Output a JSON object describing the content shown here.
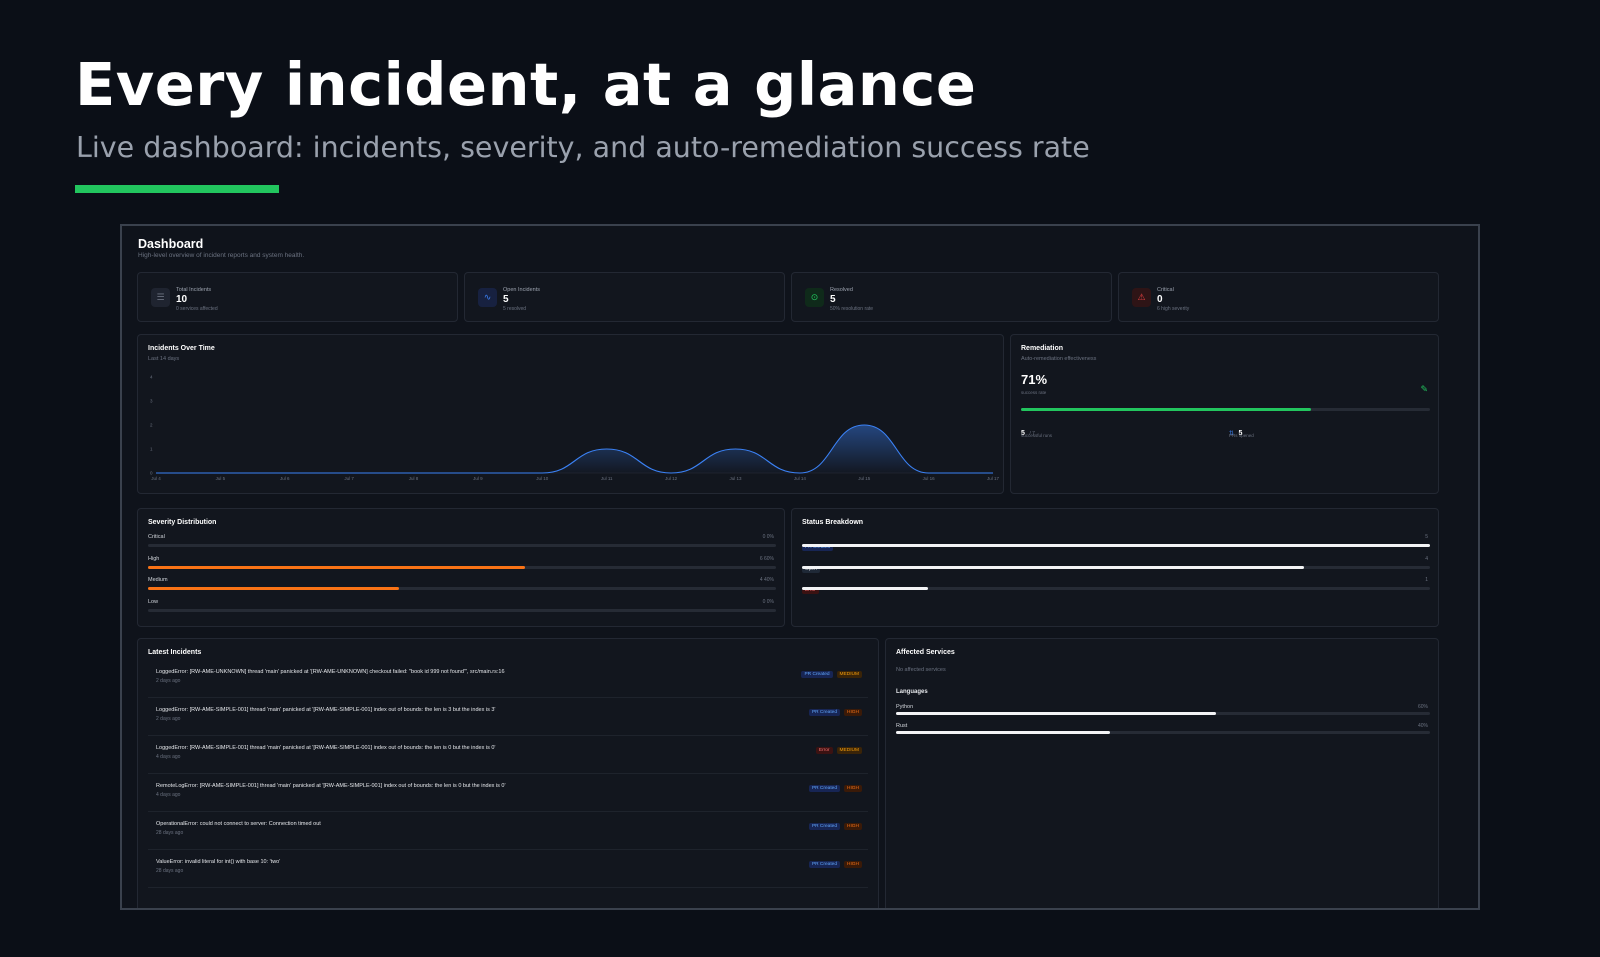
{
  "hero": {
    "title": "Every incident, at a glance",
    "subtitle": "Live dashboard: incidents, severity, and auto-remediation success rate"
  },
  "colors": {
    "accent_green": "#22c55e",
    "chart_line": "#3b82f6",
    "severity_orange": "#f97316",
    "critical_red": "#ef4444"
  },
  "dashboard": {
    "title": "Dashboard",
    "subtitle": "High-level overview of incident reports and system health."
  },
  "stats": [
    {
      "icon": "list-icon",
      "label": "Total Incidents",
      "value": "10",
      "note": "0 services affected"
    },
    {
      "icon": "activity-icon",
      "label": "Open Incidents",
      "value": "5",
      "note": "5 resolved"
    },
    {
      "icon": "check-circle-icon",
      "label": "Resolved",
      "value": "5",
      "note": "50% resolution rate"
    },
    {
      "icon": "alert-triangle-icon",
      "label": "Critical",
      "value": "0",
      "note": "6 high severity"
    }
  ],
  "incidents_chart": {
    "title": "Incidents Over Time",
    "subtitle": "Last 14 days"
  },
  "chart_data": {
    "type": "area",
    "x": [
      "Jul 4",
      "Jul 5",
      "Jul 6",
      "Jul 7",
      "Jul 8",
      "Jul 9",
      "Jul 10",
      "Jul 11",
      "Jul 12",
      "Jul 13",
      "Jul 14",
      "Jul 15",
      "Jul 16",
      "Jul 17"
    ],
    "values": [
      0,
      0,
      0,
      0,
      0,
      0,
      0,
      1,
      0,
      1,
      0,
      2,
      0,
      0
    ],
    "yticks": [
      "0",
      "1",
      "2",
      "3",
      "4"
    ],
    "ylim": [
      0,
      4
    ]
  },
  "remediation": {
    "title": "Remediation",
    "subtitle": "Auto-remediation effectiveness",
    "rate": "71%",
    "rate_label": "success rate",
    "progress": 0.71,
    "successful_value": "5",
    "successful_total": "/ 7",
    "successful_label": "successful runs",
    "prs_value": "5",
    "prs_label": "PRs opened"
  },
  "severity": {
    "title": "Severity Distribution",
    "rows": [
      {
        "label": "Critical",
        "count": "0",
        "pct": "0%",
        "fraction": 0
      },
      {
        "label": "High",
        "count": "6",
        "pct": "60%",
        "fraction": 0.6
      },
      {
        "label": "Medium",
        "count": "4",
        "pct": "40%",
        "fraction": 0.4
      },
      {
        "label": "Low",
        "count": "0",
        "pct": "0%",
        "fraction": 0
      }
    ]
  },
  "status": {
    "title": "Status Breakdown",
    "rows": [
      {
        "label": "PR Created",
        "kind": "pr",
        "count": "5",
        "fraction": 1.0
      },
      {
        "label": "Open",
        "kind": "open",
        "count": "4",
        "fraction": 0.8
      },
      {
        "label": "Error",
        "kind": "err",
        "count": "1",
        "fraction": 0.2
      }
    ]
  },
  "latest": {
    "title": "Latest Incidents",
    "items": [
      {
        "title": "LoggedError: [RW-AME-UNKNOWN] thread 'main' panicked at '[RW-AME-UNKNOWN] checkout failed: \"book id 999 not found\"', src/main.rs:16",
        "time": "2 days ago",
        "status": "PR Created",
        "status_kind": "pr",
        "severity": "MEDIUM",
        "sev_kind": "med"
      },
      {
        "title": "LoggedError: [RW-AME-SIMPLE-001] thread 'main' panicked at '[RW-AME-SIMPLE-001] index out of bounds: the len is 3 but the index is 3'",
        "time": "2 days ago",
        "status": "PR Created",
        "status_kind": "pr",
        "severity": "HIGH",
        "sev_kind": "high"
      },
      {
        "title": "LoggedError: [RW-AME-SIMPLE-001] thread 'main' panicked at '[RW-AME-SIMPLE-001] index out of bounds: the len is 0 but the index is 0'",
        "time": "4 days ago",
        "status": "Error",
        "status_kind": "err",
        "severity": "MEDIUM",
        "sev_kind": "med"
      },
      {
        "title": "RemoteLogError: [RW-AME-SIMPLE-001] thread 'main' panicked at '[RW-AME-SIMPLE-001] index out of bounds: the len is 0 but the index is 0'",
        "time": "4 days ago",
        "status": "PR Created",
        "status_kind": "pr",
        "severity": "HIGH",
        "sev_kind": "high"
      },
      {
        "title": "OperationalError: could not connect to server: Connection timed out",
        "time": "28 days ago",
        "status": "PR Created",
        "status_kind": "pr",
        "severity": "HIGH",
        "sev_kind": "high"
      },
      {
        "title": "ValueError: invalid literal for int() with base 10: 'two'",
        "time": "28 days ago",
        "status": "PR Created",
        "status_kind": "pr",
        "severity": "HIGH",
        "sev_kind": "high"
      }
    ]
  },
  "affected": {
    "title": "Affected Services",
    "empty": "No affected services",
    "languages_title": "Languages",
    "languages": [
      {
        "name": "Python",
        "pct": "60%",
        "fraction": 0.6
      },
      {
        "name": "Rust",
        "pct": "40%",
        "fraction": 0.4
      }
    ]
  }
}
